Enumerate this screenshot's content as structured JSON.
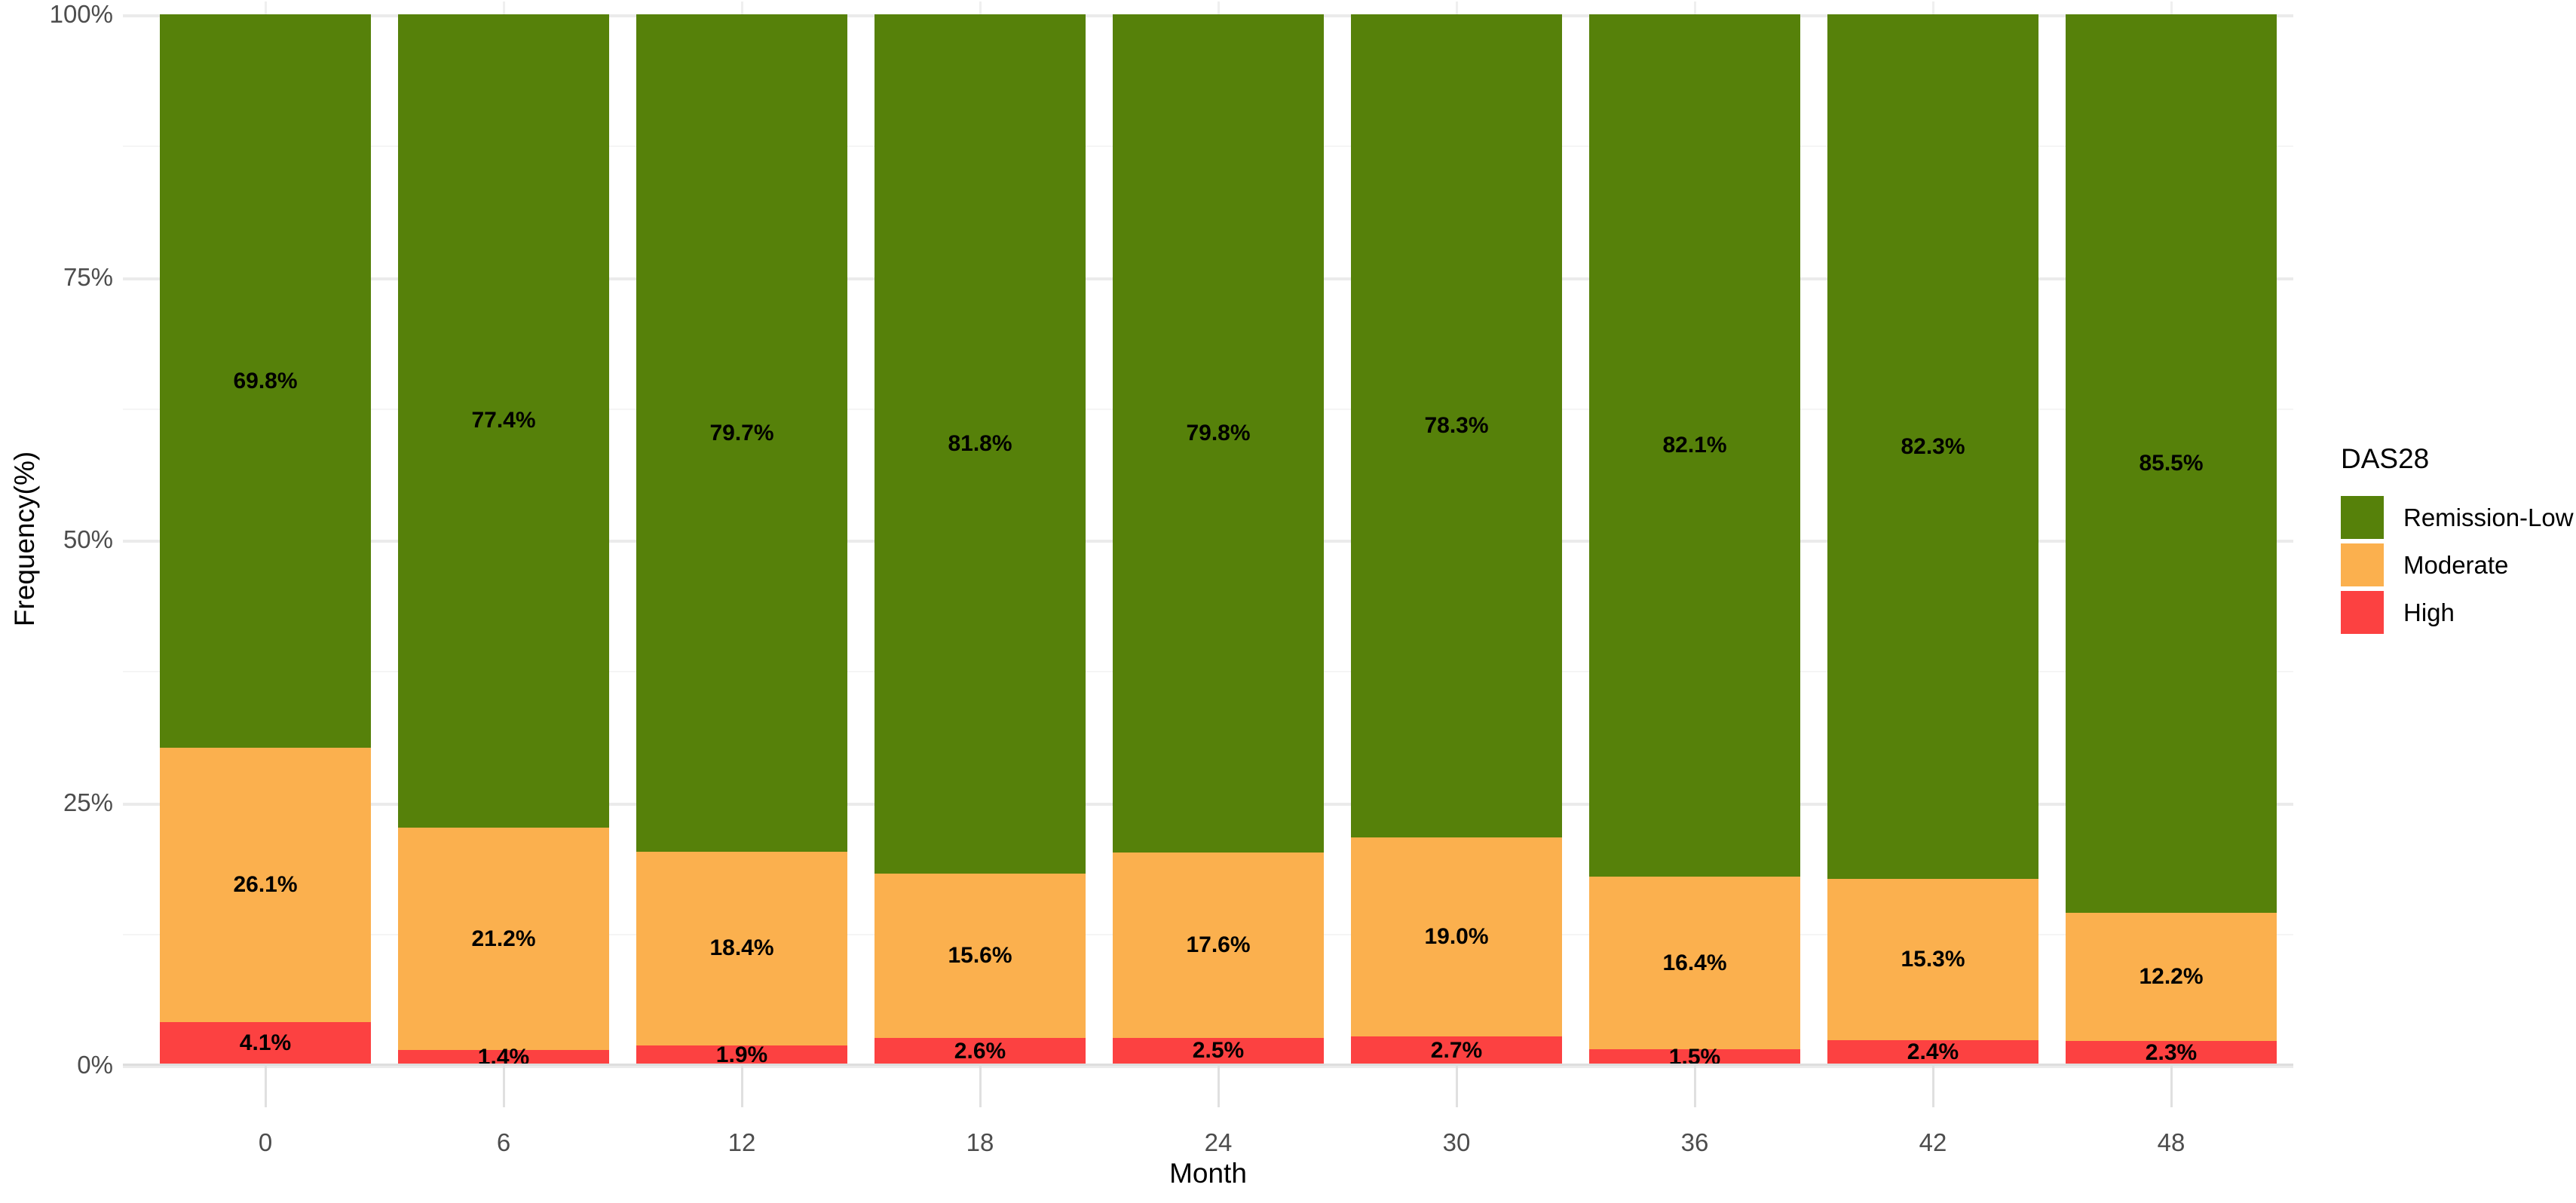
{
  "figure": {
    "y_axis": {
      "title": "Frequency(%)",
      "tick_labels": [
        "0%",
        "25%",
        "50%",
        "75%",
        "100%"
      ],
      "tick_values": [
        0,
        25,
        50,
        75,
        100
      ]
    },
    "x_axis": {
      "title": "Month",
      "tick_labels": [
        "0",
        "6",
        "12",
        "18",
        "24",
        "30",
        "36",
        "42",
        "48"
      ]
    },
    "legend": {
      "title": "DAS28",
      "position": "right"
    }
  },
  "chart_data": {
    "type": "bar",
    "stacked": true,
    "percent_scale": true,
    "grid": true,
    "title": "",
    "xlabel": "Month",
    "ylabel": "Frequency(%)",
    "ylim": [
      0,
      100
    ],
    "y_ticks": [
      0,
      25,
      50,
      75,
      100
    ],
    "y_minor_ticks": [
      12.5,
      37.5,
      62.5,
      87.5
    ],
    "categories": [
      0,
      6,
      12,
      18,
      24,
      30,
      36,
      42,
      48
    ],
    "legend_title": "DAS28",
    "legend_position": "right",
    "stack_order_top_to_bottom": [
      "Remission-Low",
      "Moderate",
      "High"
    ],
    "series": [
      {
        "name": "Remission-Low",
        "color": "#56810A",
        "values": [
          69.8,
          77.4,
          79.7,
          81.8,
          79.8,
          78.3,
          82.1,
          82.3,
          85.5
        ],
        "labels": [
          "69.8%",
          "77.4%",
          "79.7%",
          "81.8%",
          "79.8%",
          "78.3%",
          "82.1%",
          "82.3%",
          "85.5%"
        ]
      },
      {
        "name": "Moderate",
        "color": "#FBB04E",
        "values": [
          26.1,
          21.2,
          18.4,
          15.6,
          17.6,
          19.0,
          16.4,
          15.3,
          12.2
        ],
        "labels": [
          "26.1%",
          "21.2%",
          "18.4%",
          "15.6%",
          "17.6%",
          "19.0%",
          "16.4%",
          "15.3%",
          "12.2%"
        ]
      },
      {
        "name": "High",
        "color": "#FC4141",
        "values": [
          4.1,
          1.4,
          1.9,
          2.6,
          2.5,
          2.7,
          1.5,
          2.4,
          2.3
        ],
        "labels": [
          "4.1%",
          "1.4%",
          "1.9%",
          "2.6%",
          "2.5%",
          "2.7%",
          "1.5%",
          "2.4%",
          "2.3%"
        ]
      }
    ]
  }
}
